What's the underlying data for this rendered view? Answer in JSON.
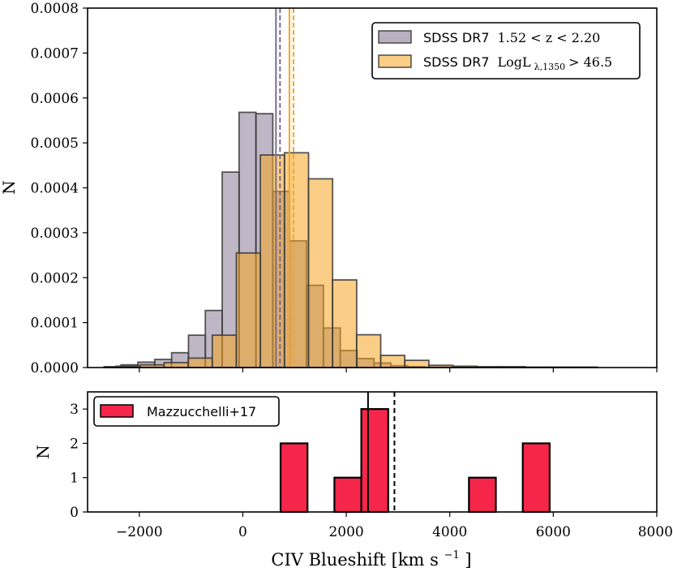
{
  "chart_data": [
    {
      "type": "bar",
      "panel": "top",
      "title": "",
      "xlabel": "",
      "ylabel": "N",
      "xlim": [
        -3000,
        8000
      ],
      "ylim": [
        0,
        0.0008
      ],
      "yticks": [
        0.0,
        0.0001,
        0.0002,
        0.0003,
        0.0004,
        0.0005,
        0.0006,
        0.0007,
        0.0008
      ],
      "ytick_labels": [
        "0.0000",
        "0.0001",
        "0.0002",
        "0.0003",
        "0.0004",
        "0.0005",
        "0.0006",
        "0.0007",
        "0.0008"
      ],
      "legend_position": "top-right",
      "series": [
        {
          "name": "SDSS DR7 1.52 < z < 2.20",
          "legend_label": "SDSS DR7",
          "legend_math": "1.52 < z < 2.20",
          "color": "#8a7b96",
          "bin_width": 326,
          "bin_starts": [
            -2680,
            -2354,
            -2028,
            -1702,
            -1376,
            -1050,
            -724,
            -398,
            -72,
            254,
            580,
            906,
            1232,
            1558,
            1884,
            2210,
            2536,
            2862,
            3188,
            3514,
            3840
          ],
          "values": [
            2e-06,
            6e-06,
            1.2e-05,
            1.8e-05,
            3.3e-05,
            7.2e-05,
            0.000127,
            0.000435,
            0.000568,
            0.000565,
            0.000392,
            0.000282,
            0.000183,
            8.8e-05,
            3.8e-05,
            2e-05,
            1e-05,
            4e-06,
            2e-06,
            1e-06,
            1e-06
          ],
          "median": 680
        },
        {
          "name": "SDSS DR7 LogL_lambda,1350 > 46.5",
          "legend_label": "SDSS DR7",
          "legend_math": "LogL",
          "legend_sub": "λ,1350",
          "legend_tail": " > 46.5",
          "color": "#f5a623",
          "bin_width": 465,
          "bin_starts": [
            -2450,
            -1985,
            -1520,
            -1055,
            -590,
            -125,
            340,
            805,
            1270,
            1735,
            2200,
            2665,
            3130,
            3595,
            4060,
            4525,
            4990,
            5455,
            5920,
            6385,
            6850
          ],
          "values": [
            3e-06,
            6e-06,
            1.1e-05,
            2.1e-05,
            7.2e-05,
            0.000255,
            0.000473,
            0.000478,
            0.00042,
            0.000195,
            7.3e-05,
            2.7e-05,
            1.6e-05,
            5e-06,
            3e-06,
            2e-06,
            2e-06,
            1e-06,
            1e-06,
            1e-06,
            0.0
          ],
          "median": 940
        }
      ]
    },
    {
      "type": "bar",
      "panel": "bottom",
      "title": "",
      "xlabel": "CIV Blueshift [km s",
      "xlabel_sup": "−1",
      "xlabel_close": "]",
      "ylabel": "N",
      "xlim": [
        -3000,
        8000
      ],
      "ylim": [
        0,
        3.5
      ],
      "xticks": [
        -2000,
        0,
        2000,
        4000,
        6000,
        8000
      ],
      "xtick_labels": [
        "−2000",
        "0",
        "2000",
        "4000",
        "6000",
        "8000"
      ],
      "yticks": [
        0,
        1,
        2,
        3
      ],
      "ytick_labels": [
        "0",
        "1",
        "2",
        "3"
      ],
      "legend_position": "top-left",
      "series": [
        {
          "name": "Mazzucchelli+17",
          "color": "#f5264a",
          "bin_width": 520,
          "bin_starts": [
            730,
            1770,
            2290,
            4370,
            5410
          ],
          "values": [
            2,
            1,
            3,
            1,
            2
          ]
        }
      ],
      "median": 2420,
      "mean": 2930
    }
  ]
}
